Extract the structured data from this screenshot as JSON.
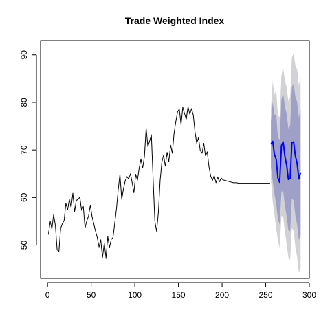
{
  "chart_data": {
    "type": "line",
    "title": "Trade Weighted Index",
    "xlabel": "",
    "ylabel": "",
    "xlim": [
      -8,
      300
    ],
    "ylim": [
      43,
      93
    ],
    "x_ticks": [
      0,
      50,
      100,
      150,
      200,
      250,
      300
    ],
    "y_ticks": [
      50,
      60,
      70,
      80,
      90
    ],
    "grid": false,
    "legend": "none",
    "colors": {
      "history": "#000000",
      "forecast": "#0000ff",
      "pi80": "#9fa0c8",
      "pi95": "#d2d2d6"
    },
    "series": [
      {
        "kind": "history",
        "x": [
          1,
          3,
          5,
          7,
          9,
          11,
          13,
          15,
          17,
          19,
          21,
          23,
          25,
          27,
          29,
          31,
          33,
          35,
          37,
          39,
          41,
          43,
          45,
          47,
          49,
          51,
          53,
          55,
          57,
          59,
          61,
          63,
          65,
          67,
          69,
          71,
          73,
          75,
          77,
          79,
          81,
          83,
          85,
          87,
          89,
          91,
          93,
          95,
          97,
          99,
          101,
          103,
          105,
          107,
          109,
          111,
          113,
          115,
          117,
          119,
          121,
          123,
          125,
          127,
          129,
          131,
          133,
          135,
          137,
          139,
          141,
          143,
          145,
          147,
          149,
          151,
          153,
          155,
          157,
          159,
          161,
          163,
          165,
          167,
          169,
          171,
          173,
          175,
          177,
          179,
          181,
          183,
          185,
          187,
          189,
          191,
          193,
          195,
          197,
          199,
          201,
          203,
          205,
          207,
          209,
          211,
          213,
          215,
          217,
          219,
          221,
          223,
          225,
          227,
          229,
          231,
          233,
          235,
          237,
          239,
          241,
          243,
          245,
          247,
          249,
          251,
          253,
          255
        ],
        "y": [
          52.2,
          55,
          53.4,
          56.4,
          54.1,
          49,
          48.7,
          53.5,
          54.5,
          55.2,
          58.8,
          57.5,
          59.6,
          57.9,
          60.9,
          57,
          59.4,
          59.6,
          60.1,
          57.3,
          58.1,
          53.6,
          55.1,
          56.1,
          58.4,
          56,
          54.5,
          52.9,
          51.6,
          49.6,
          51.1,
          47.4,
          50.4,
          47.3,
          51.8,
          49.5,
          51.2,
          51.6,
          54.6,
          57.6,
          61.7,
          64.9,
          59.6,
          61.8,
          63.5,
          64.4,
          63.9,
          65,
          63.1,
          61,
          64.9,
          63.6,
          66.2,
          68.1,
          66.2,
          68.6,
          74.6,
          70.7,
          71.9,
          73.2,
          63.7,
          55,
          52.9,
          56.8,
          63.5,
          67.5,
          68.9,
          66.6,
          69.5,
          67.6,
          71,
          69.3,
          73.5,
          76,
          78,
          78.6,
          75.3,
          79,
          77.6,
          76.5,
          79.1,
          77.5,
          78.7,
          77.3,
          73.8,
          71.4,
          72.6,
          69.9,
          69.3,
          71.4,
          68.8,
          69.6,
          66.5,
          64.5,
          63.6,
          64.6,
          63.1,
          64.3,
          63.3,
          64.1,
          63.7,
          63.6,
          63.5,
          63.4,
          63.3,
          63.2,
          63.1,
          63.1,
          63.1,
          63,
          63,
          63,
          63,
          63,
          63,
          63,
          63,
          63,
          63,
          63,
          63,
          63,
          63,
          63,
          63,
          63,
          63,
          63
        ]
      },
      {
        "kind": "forecast",
        "x": [
          256,
          258,
          260,
          262,
          264,
          266,
          268,
          270,
          272,
          274,
          276,
          278,
          280,
          282,
          284,
          286,
          288,
          290
        ],
        "y": [
          71.2,
          71.8,
          69.1,
          68,
          64.1,
          63.2,
          70.9,
          71.7,
          68.6,
          66.8,
          63.8,
          64,
          71.5,
          71.7,
          68.7,
          67.2,
          63.9,
          65.3
        ],
        "lo80": [
          66.5,
          63.5,
          60.8,
          58.5,
          55.5,
          54.3,
          61.2,
          61.4,
          58.2,
          56,
          53.1,
          52.9,
          59.8,
          59.4,
          56.2,
          54.3,
          51,
          52.1
        ],
        "hi80": [
          76,
          80.1,
          77.4,
          77.5,
          72.7,
          72.1,
          80.6,
          82,
          79,
          77.6,
          74.5,
          75.1,
          83.2,
          84,
          81.2,
          80.1,
          76.8,
          78.5
        ],
        "lo95": [
          63.9,
          59.1,
          56.4,
          53.5,
          50.9,
          49.5,
          56.1,
          56,
          52.7,
          50.3,
          47.4,
          46.9,
          53.6,
          53,
          49.6,
          47.5,
          44.2,
          45.1
        ],
        "hi95": [
          78.5,
          84.5,
          81.8,
          82.5,
          77.3,
          76.9,
          85.7,
          87.4,
          84.5,
          83.3,
          80.2,
          81.1,
          89.4,
          90.4,
          87.8,
          86.9,
          83.6,
          85.5
        ]
      }
    ]
  }
}
